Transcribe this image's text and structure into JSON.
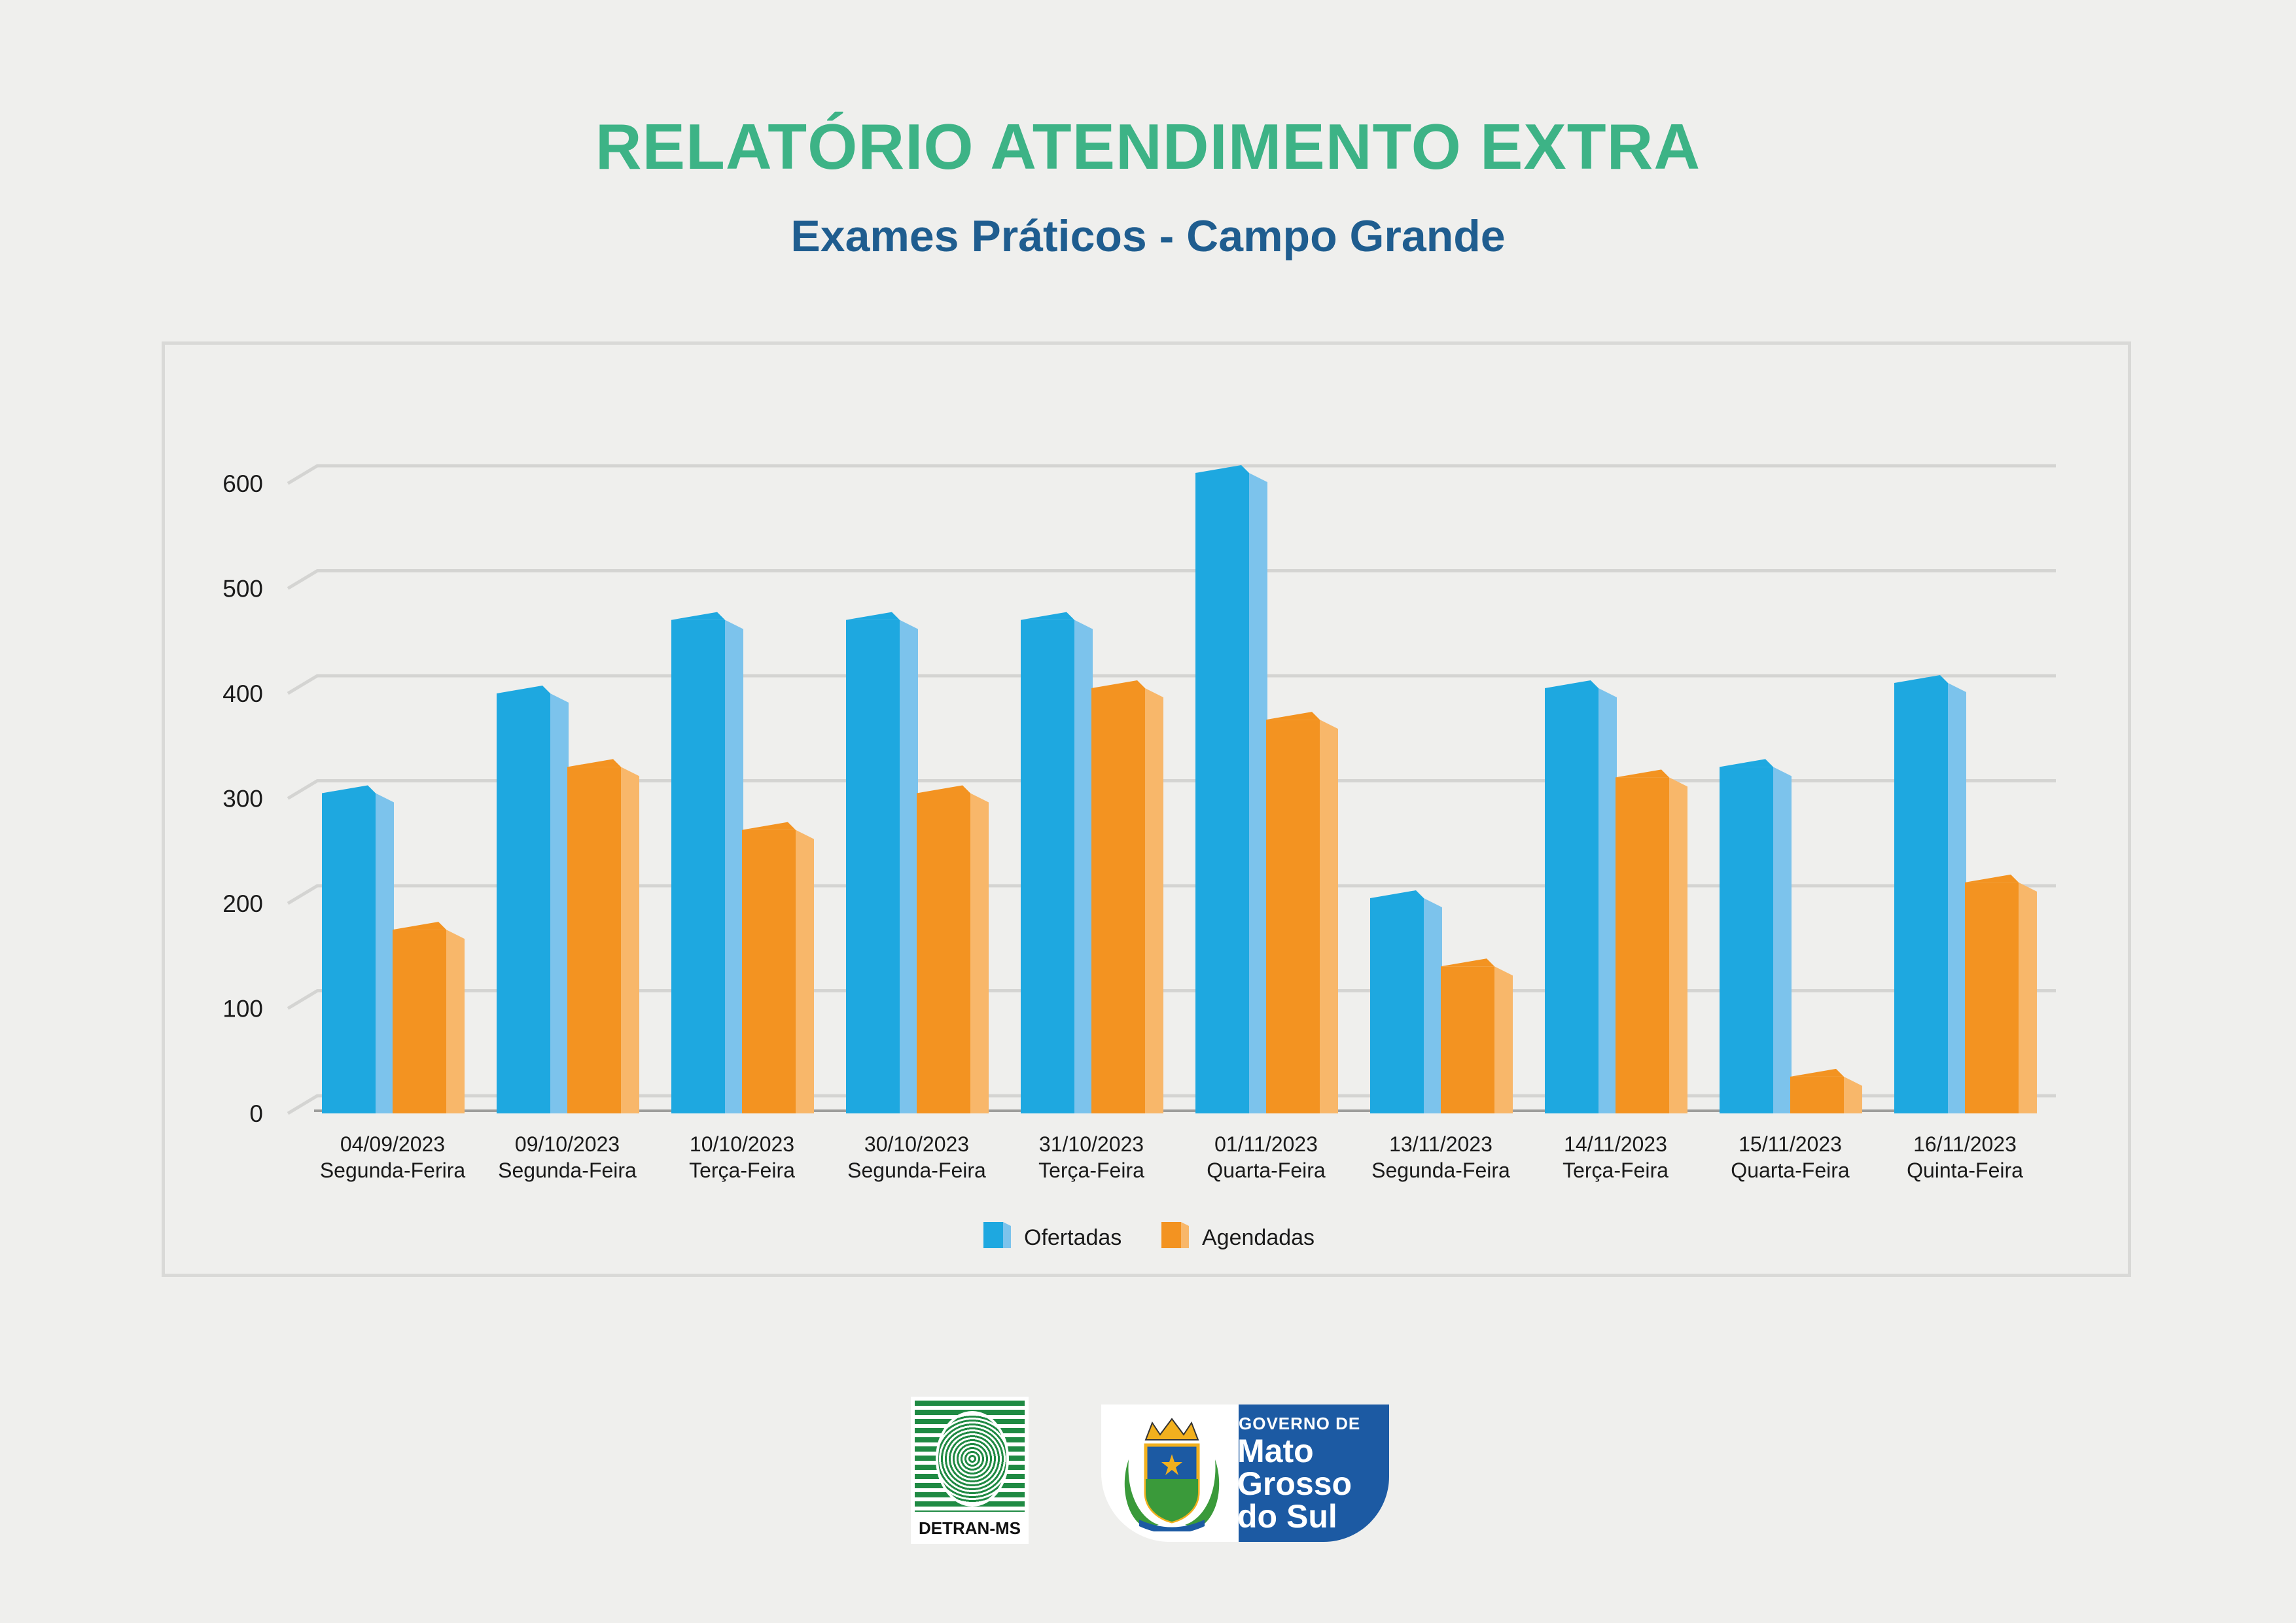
{
  "header": {
    "title": "RELATÓRIO ATENDIMENTO EXTRA",
    "subtitle": "Exames Práticos - Campo Grande"
  },
  "chart_data": {
    "type": "bar",
    "title": "RELATÓRIO ATENDIMENTO EXTRA",
    "subtitle": "Exames Práticos - Campo Grande",
    "xlabel": "",
    "ylabel": "",
    "ylim": [
      0,
      600
    ],
    "yticks": [
      0,
      100,
      200,
      300,
      400,
      500,
      600
    ],
    "grid": true,
    "legend_position": "bottom",
    "categories": [
      {
        "date": "04/09/2023",
        "day": "Segunda-Ferira"
      },
      {
        "date": "09/10/2023",
        "day": "Segunda-Feira"
      },
      {
        "date": "10/10/2023",
        "day": "Terça-Feira"
      },
      {
        "date": "30/10/2023",
        "day": "Segunda-Feira"
      },
      {
        "date": "31/10/2023",
        "day": "Terça-Feira"
      },
      {
        "date": "01/11/2023",
        "day": "Quarta-Feira"
      },
      {
        "date": "13/11/2023",
        "day": "Segunda-Feira"
      },
      {
        "date": "14/11/2023",
        "day": "Terça-Feira"
      },
      {
        "date": "15/11/2023",
        "day": "Quarta-Feira"
      },
      {
        "date": "16/11/2023",
        "day": "Quinta-Feira"
      }
    ],
    "series": [
      {
        "name": "Ofertadas",
        "color": "#1ea8e0",
        "side_color": "#7cc3ec",
        "values": [
          305,
          400,
          470,
          470,
          470,
          610,
          205,
          405,
          330,
          410
        ]
      },
      {
        "name": "Agendadas",
        "color": "#f39321",
        "side_color": "#f8b76a",
        "values": [
          175,
          330,
          270,
          305,
          405,
          375,
          140,
          320,
          35,
          220
        ]
      }
    ]
  },
  "logos": {
    "detran": "DETRAN-MS",
    "gov_line1": "GOVERNO DE",
    "gov_line2": "Mato",
    "gov_line3": "Grosso",
    "gov_line4": "do Sul"
  }
}
